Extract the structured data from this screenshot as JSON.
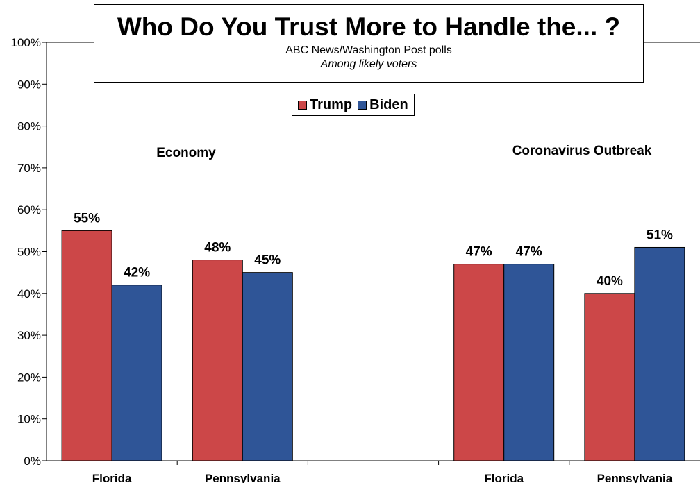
{
  "colors": {
    "trump": "#CC4748",
    "biden": "#2F5597",
    "stroke": "#000000"
  },
  "title": {
    "main": "Who Do You Trust More to Handle the... ?",
    "sub1": "ABC News/Washington Post polls",
    "sub2": "Among likely voters"
  },
  "legend": [
    {
      "name": "Trump",
      "color": "#CC4748"
    },
    {
      "name": "Biden",
      "color": "#2F5597"
    }
  ],
  "chart_data": {
    "type": "bar",
    "title": "Who Do You Trust More to Handle the... ?",
    "subtitle": "ABC News/Washington Post polls",
    "ylim": [
      0,
      100
    ],
    "yticks": [
      0,
      10,
      20,
      30,
      40,
      50,
      60,
      70,
      80,
      90,
      100
    ],
    "ytick_labels": [
      "0%",
      "10%",
      "20%",
      "30%",
      "40%",
      "50%",
      "60%",
      "70%",
      "80%",
      "90%",
      "100%"
    ],
    "grid": false,
    "legend_position": "top-center",
    "categories": [
      "Florida",
      "Pennsylvania",
      "",
      "Florida",
      "Pennsylvania"
    ],
    "groups": [
      "Economy",
      "Coronavirus Outbreak"
    ],
    "series": [
      {
        "name": "Trump",
        "values": [
          55,
          48,
          null,
          47,
          40
        ],
        "labels": [
          "55%",
          "48%",
          "",
          "47%",
          "40%"
        ]
      },
      {
        "name": "Biden",
        "values": [
          42,
          45,
          null,
          47,
          51
        ],
        "labels": [
          "42%",
          "45%",
          "",
          "47%",
          "51%"
        ]
      }
    ]
  }
}
